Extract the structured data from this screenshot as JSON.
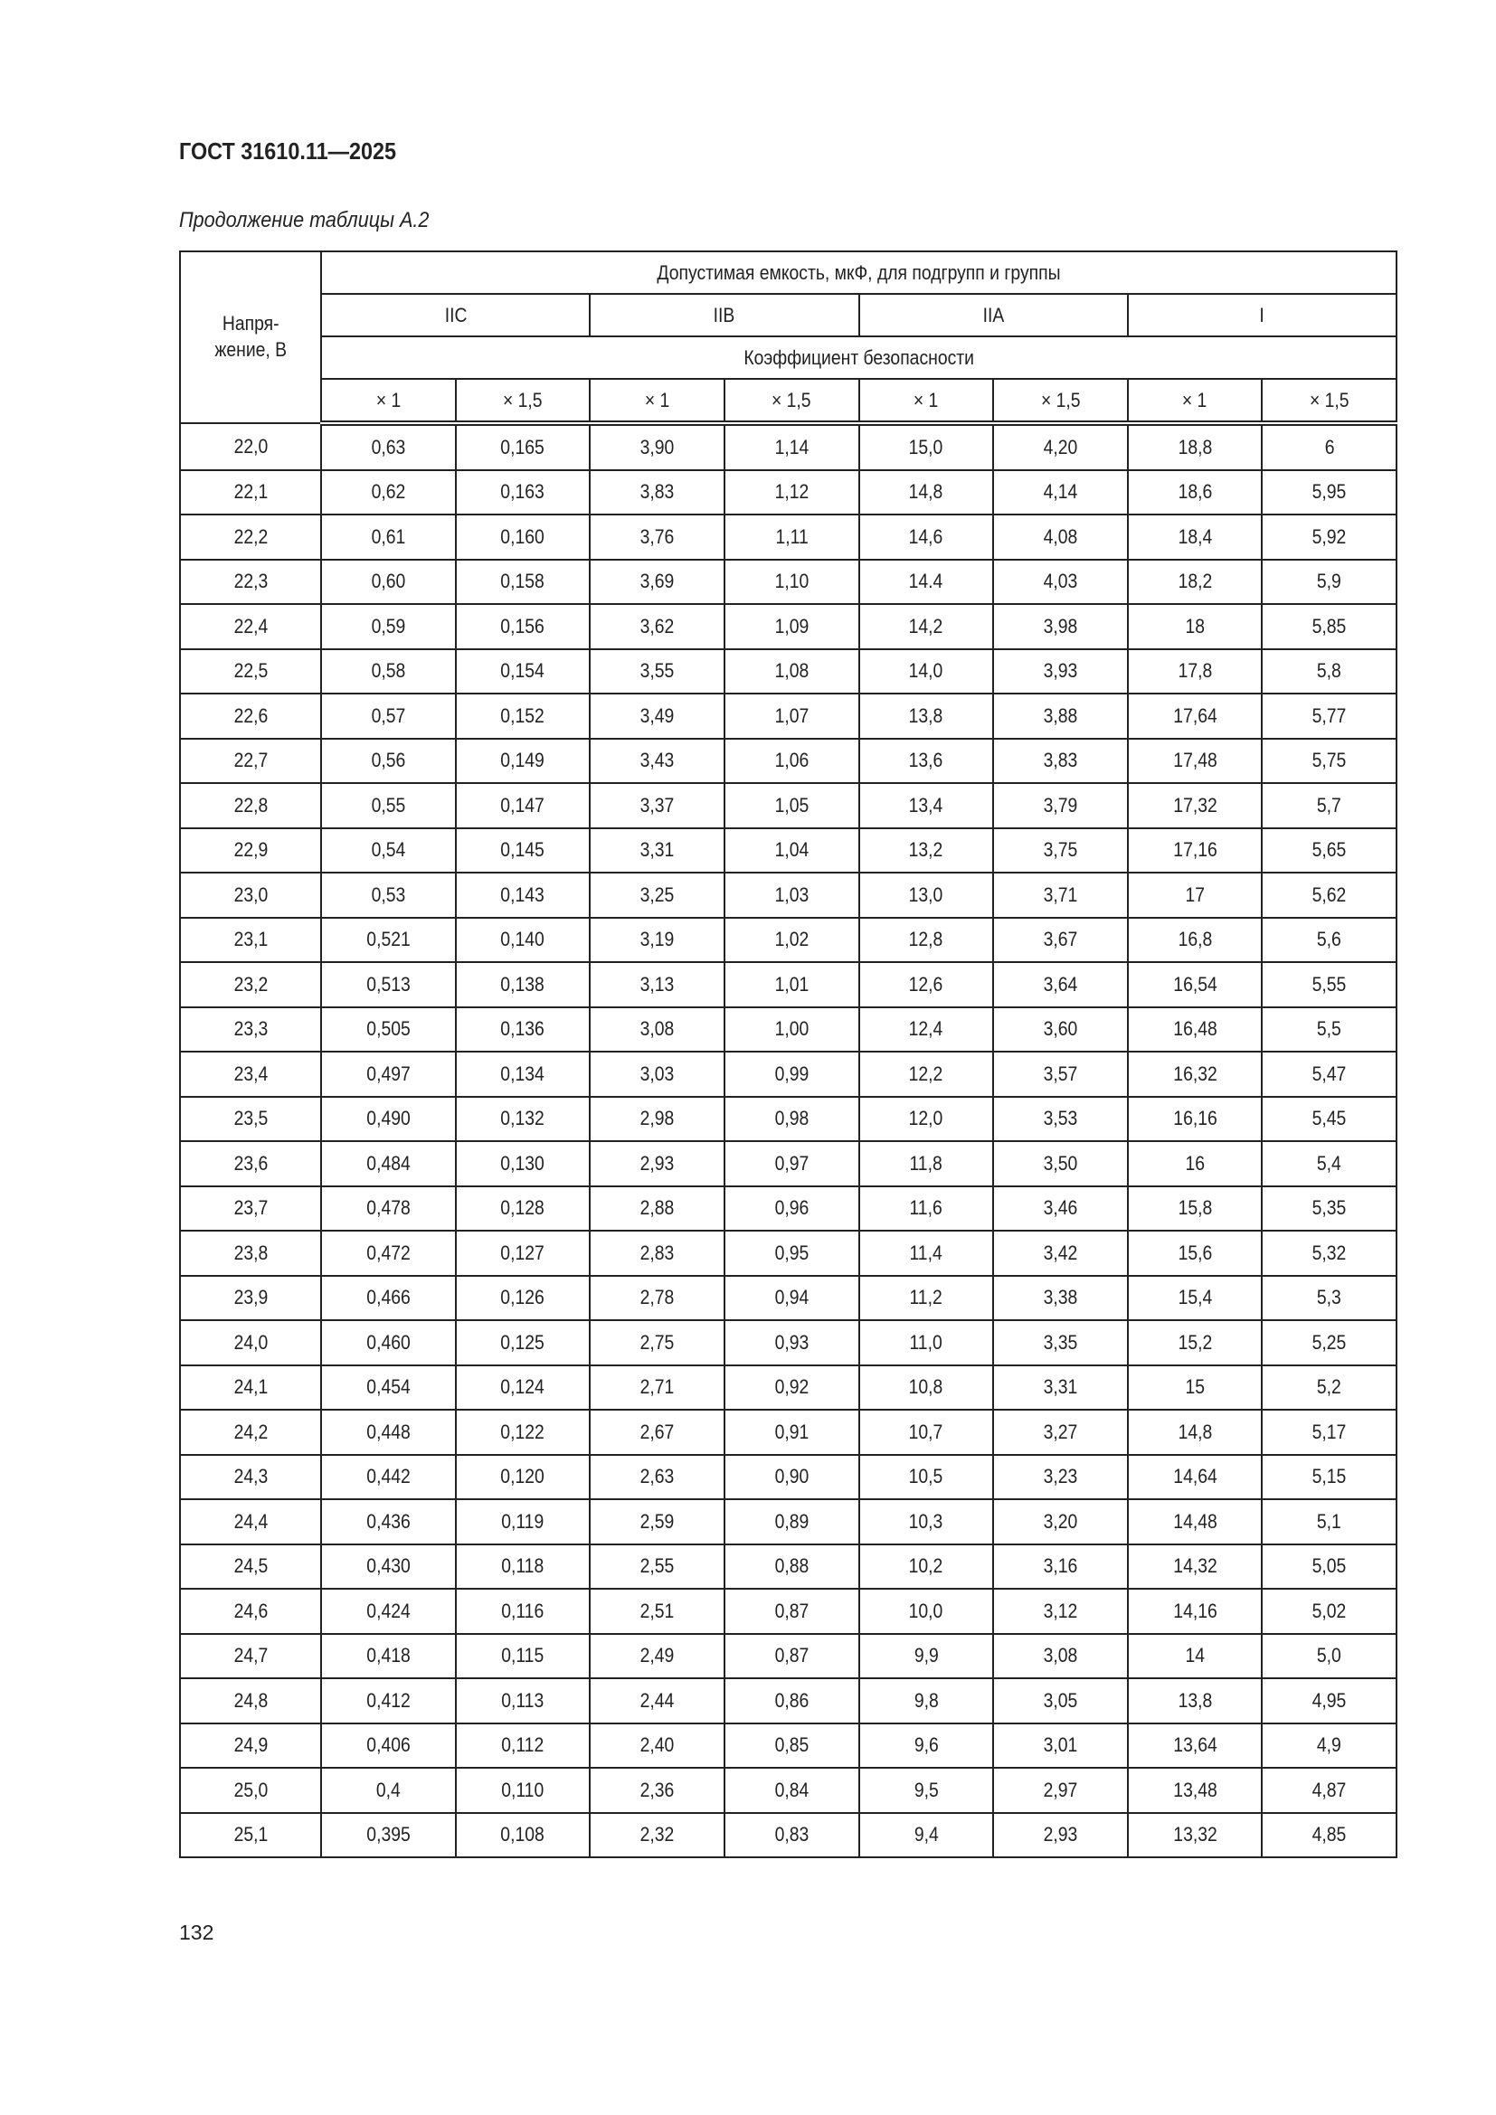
{
  "header": {
    "doc_title": "ГОСТ 31610.11—2025",
    "subtitle": "Продолжение таблицы А.2"
  },
  "table": {
    "voltage_header": "Напря-\nжение, В",
    "capacity_header": "Допустимая емкость, мкФ, для подгрупп и группы",
    "groups": [
      "IIC",
      "IIB",
      "IIA",
      "I"
    ],
    "safety_factor_header": "Коэффициент безопасности",
    "factors": [
      "× 1",
      "× 1,5",
      "× 1",
      "× 1,5",
      "× 1",
      "× 1,5",
      "× 1",
      "× 1,5"
    ],
    "rows": [
      [
        "22,0",
        "0,63",
        "0,165",
        "3,90",
        "1,14",
        "15,0",
        "4,20",
        "18,8",
        "6"
      ],
      [
        "22,1",
        "0,62",
        "0,163",
        "3,83",
        "1,12",
        "14,8",
        "4,14",
        "18,6",
        "5,95"
      ],
      [
        "22,2",
        "0,61",
        "0,160",
        "3,76",
        "1,11",
        "14,6",
        "4,08",
        "18,4",
        "5,92"
      ],
      [
        "22,3",
        "0,60",
        "0,158",
        "3,69",
        "1,10",
        "14.4",
        "4,03",
        "18,2",
        "5,9"
      ],
      [
        "22,4",
        "0,59",
        "0,156",
        "3,62",
        "1,09",
        "14,2",
        "3,98",
        "18",
        "5,85"
      ],
      [
        "22,5",
        "0,58",
        "0,154",
        "3,55",
        "1,08",
        "14,0",
        "3,93",
        "17,8",
        "5,8"
      ],
      [
        "22,6",
        "0,57",
        "0,152",
        "3,49",
        "1,07",
        "13,8",
        "3,88",
        "17,64",
        "5,77"
      ],
      [
        "22,7",
        "0,56",
        "0,149",
        "3,43",
        "1,06",
        "13,6",
        "3,83",
        "17,48",
        "5,75"
      ],
      [
        "22,8",
        "0,55",
        "0,147",
        "3,37",
        "1,05",
        "13,4",
        "3,79",
        "17,32",
        "5,7"
      ],
      [
        "22,9",
        "0,54",
        "0,145",
        "3,31",
        "1,04",
        "13,2",
        "3,75",
        "17,16",
        "5,65"
      ],
      [
        "23,0",
        "0,53",
        "0,143",
        "3,25",
        "1,03",
        "13,0",
        "3,71",
        "17",
        "5,62"
      ],
      [
        "23,1",
        "0,521",
        "0,140",
        "3,19",
        "1,02",
        "12,8",
        "3,67",
        "16,8",
        "5,6"
      ],
      [
        "23,2",
        "0,513",
        "0,138",
        "3,13",
        "1,01",
        "12,6",
        "3,64",
        "16,54",
        "5,55"
      ],
      [
        "23,3",
        "0,505",
        "0,136",
        "3,08",
        "1,00",
        "12,4",
        "3,60",
        "16,48",
        "5,5"
      ],
      [
        "23,4",
        "0,497",
        "0,134",
        "3,03",
        "0,99",
        "12,2",
        "3,57",
        "16,32",
        "5,47"
      ],
      [
        "23,5",
        "0,490",
        "0,132",
        "2,98",
        "0,98",
        "12,0",
        "3,53",
        "16,16",
        "5,45"
      ],
      [
        "23,6",
        "0,484",
        "0,130",
        "2,93",
        "0,97",
        "11,8",
        "3,50",
        "16",
        "5,4"
      ],
      [
        "23,7",
        "0,478",
        "0,128",
        "2,88",
        "0,96",
        "11,6",
        "3,46",
        "15,8",
        "5,35"
      ],
      [
        "23,8",
        "0,472",
        "0,127",
        "2,83",
        "0,95",
        "11,4",
        "3,42",
        "15,6",
        "5,32"
      ],
      [
        "23,9",
        "0,466",
        "0,126",
        "2,78",
        "0,94",
        "11,2",
        "3,38",
        "15,4",
        "5,3"
      ],
      [
        "24,0",
        "0,460",
        "0,125",
        "2,75",
        "0,93",
        "11,0",
        "3,35",
        "15,2",
        "5,25"
      ],
      [
        "24,1",
        "0,454",
        "0,124",
        "2,71",
        "0,92",
        "10,8",
        "3,31",
        "15",
        "5,2"
      ],
      [
        "24,2",
        "0,448",
        "0,122",
        "2,67",
        "0,91",
        "10,7",
        "3,27",
        "14,8",
        "5,17"
      ],
      [
        "24,3",
        "0,442",
        "0,120",
        "2,63",
        "0,90",
        "10,5",
        "3,23",
        "14,64",
        "5,15"
      ],
      [
        "24,4",
        "0,436",
        "0,119",
        "2,59",
        "0,89",
        "10,3",
        "3,20",
        "14,48",
        "5,1"
      ],
      [
        "24,5",
        "0,430",
        "0,118",
        "2,55",
        "0,88",
        "10,2",
        "3,16",
        "14,32",
        "5,05"
      ],
      [
        "24,6",
        "0,424",
        "0,116",
        "2,51",
        "0,87",
        "10,0",
        "3,12",
        "14,16",
        "5,02"
      ],
      [
        "24,7",
        "0,418",
        "0,115",
        "2,49",
        "0,87",
        "9,9",
        "3,08",
        "14",
        "5,0"
      ],
      [
        "24,8",
        "0,412",
        "0,113",
        "2,44",
        "0,86",
        "9,8",
        "3,05",
        "13,8",
        "4,95"
      ],
      [
        "24,9",
        "0,406",
        "0,112",
        "2,40",
        "0,85",
        "9,6",
        "3,01",
        "13,64",
        "4,9"
      ],
      [
        "25,0",
        "0,4",
        "0,110",
        "2,36",
        "0,84",
        "9,5",
        "2,97",
        "13,48",
        "4,87"
      ],
      [
        "25,1",
        "0,395",
        "0,108",
        "2,32",
        "0,83",
        "9,4",
        "2,93",
        "13,32",
        "4,85"
      ]
    ]
  },
  "footer": {
    "page_number": "132"
  }
}
